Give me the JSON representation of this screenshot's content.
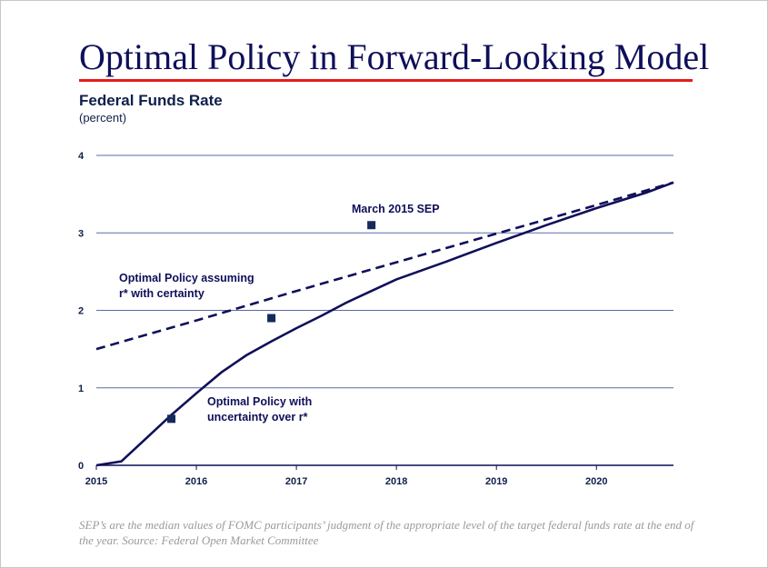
{
  "title": "Optimal Policy in Forward-Looking Model",
  "colors": {
    "title": "#0f0f5a",
    "rule": "#e41b1b",
    "series": "#0f0f5a",
    "grid": "#5a6aa8"
  },
  "note": "SEP’s are the median values of FOMC participants’ judgment of the appropriate level of the target federal funds rate at the end of the year.  Source: Federal Open Market Committee",
  "chart_data": {
    "type": "line",
    "title": "Federal Funds Rate",
    "subtitle": "(percent)",
    "xlim": [
      2015,
      2020.77
    ],
    "ylim": [
      0,
      4
    ],
    "xticks": [
      "2015",
      "2016",
      "2017",
      "2018",
      "2019",
      "2020"
    ],
    "yticks": [
      "0",
      "1",
      "2",
      "3",
      "4"
    ],
    "grid": "horizontal",
    "series": [
      {
        "label_lines": [
          "Optimal Policy with",
          "uncertainty over r*"
        ],
        "style": "solid",
        "x": [
          2015,
          2015.25,
          2015.5,
          2015.75,
          2016,
          2016.25,
          2016.5,
          2016.75,
          2017,
          2017.25,
          2017.5,
          2017.75,
          2018,
          2018.5,
          2019,
          2019.5,
          2020,
          2020.5,
          2020.77
        ],
        "y": [
          0,
          0.05,
          0.35,
          0.65,
          0.93,
          1.2,
          1.42,
          1.6,
          1.77,
          1.93,
          2.1,
          2.25,
          2.4,
          2.63,
          2.87,
          3.1,
          3.32,
          3.52,
          3.65
        ]
      },
      {
        "label_lines": [
          "Optimal Policy assuming",
          "r* with certainty"
        ],
        "style": "dashed",
        "x": [
          2015,
          2016,
          2017,
          2018,
          2019,
          2020,
          2020.77
        ],
        "y": [
          1.5,
          1.87,
          2.25,
          2.62,
          2.99,
          3.36,
          3.65
        ]
      },
      {
        "label_lines": [
          "March 2015 SEP"
        ],
        "style": "markers",
        "x": [
          2015.75,
          2016.75,
          2017.75
        ],
        "y": [
          0.6,
          1.9,
          3.1
        ]
      }
    ]
  }
}
